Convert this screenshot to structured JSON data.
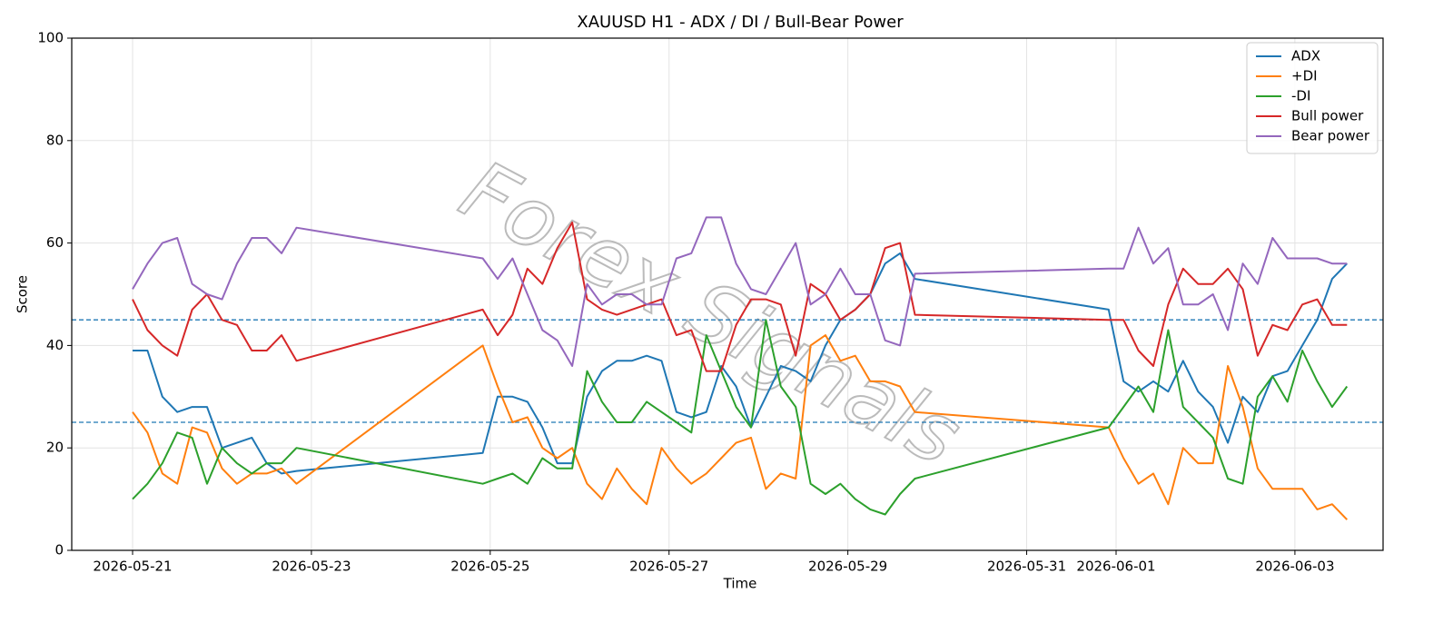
{
  "chart_data": {
    "type": "line",
    "title": "XAUUSD H1 - ADX / DI / Bull-Bear Power",
    "xlabel": "Time",
    "ylabel": "Score",
    "watermark": "Forex Signals",
    "x": [
      "2026-05-21 00:00",
      "2026-05-21 04:00",
      "2026-05-21 08:00",
      "2026-05-21 12:00",
      "2026-05-21 16:00",
      "2026-05-21 20:00",
      "2026-05-22 00:00",
      "2026-05-22 04:00",
      "2026-05-22 08:00",
      "2026-05-22 12:00",
      "2026-05-22 16:00",
      "2026-05-22 20:00",
      "2026-05-24 22:00",
      "2026-05-25 02:00",
      "2026-05-25 06:00",
      "2026-05-25 10:00",
      "2026-05-25 14:00",
      "2026-05-25 18:00",
      "2026-05-25 22:00",
      "2026-05-26 02:00",
      "2026-05-26 06:00",
      "2026-05-26 10:00",
      "2026-05-26 14:00",
      "2026-05-26 18:00",
      "2026-05-26 22:00",
      "2026-05-27 02:00",
      "2026-05-27 06:00",
      "2026-05-27 10:00",
      "2026-05-27 14:00",
      "2026-05-27 18:00",
      "2026-05-27 22:00",
      "2026-05-28 02:00",
      "2026-05-28 06:00",
      "2026-05-28 10:00",
      "2026-05-28 14:00",
      "2026-05-28 18:00",
      "2026-05-28 22:00",
      "2026-05-29 02:00",
      "2026-05-29 06:00",
      "2026-05-29 10:00",
      "2026-05-29 14:00",
      "2026-05-29 18:00",
      "2026-05-31 22:00",
      "2026-06-01 02:00",
      "2026-06-01 06:00",
      "2026-06-01 10:00",
      "2026-06-01 14:00",
      "2026-06-01 18:00",
      "2026-06-01 22:00",
      "2026-06-02 02:00",
      "2026-06-02 06:00",
      "2026-06-02 10:00",
      "2026-06-02 14:00",
      "2026-06-02 18:00",
      "2026-06-02 22:00",
      "2026-06-03 02:00",
      "2026-06-03 06:00",
      "2026-06-03 10:00",
      "2026-06-03 14:00"
    ],
    "series": [
      {
        "name": "ADX",
        "color": "#1f77b4",
        "values": [
          39,
          39,
          30,
          27,
          28,
          28,
          20,
          21,
          22,
          17,
          15,
          15.5,
          19,
          30,
          30,
          29,
          24,
          17,
          17,
          30,
          35,
          37,
          37,
          38,
          37,
          27,
          26,
          27,
          36,
          32,
          24,
          30,
          36,
          35,
          33,
          40,
          45,
          47,
          50,
          56,
          58,
          53,
          47,
          33,
          31,
          33,
          31,
          37,
          31,
          28,
          21,
          30,
          27,
          34,
          35,
          40,
          45,
          53,
          56
        ]
      },
      {
        "name": "+DI",
        "color": "#ff7f0e",
        "values": [
          27,
          23,
          15,
          13,
          24,
          23,
          16,
          13,
          15,
          15,
          16,
          13,
          40,
          32,
          25,
          26,
          20,
          18,
          20,
          13,
          10,
          16,
          12,
          9,
          20,
          16,
          13,
          15,
          18,
          21,
          22,
          12,
          15,
          14,
          40,
          42,
          37,
          38,
          33,
          33,
          32,
          27,
          24,
          18,
          13,
          15,
          9,
          20,
          17,
          17,
          36,
          28,
          16,
          12,
          12,
          12,
          8,
          9,
          6
        ]
      },
      {
        "name": "-DI",
        "color": "#2ca02c",
        "values": [
          10,
          13,
          17,
          23,
          22,
          13,
          20,
          17,
          15,
          17,
          17,
          20,
          13,
          14,
          15,
          13,
          18,
          16,
          16,
          35,
          29,
          25,
          25,
          29,
          27,
          25,
          23,
          42,
          35,
          28,
          24,
          45,
          32,
          28,
          13,
          11,
          13,
          10,
          8,
          7,
          11,
          14,
          24,
          28,
          32,
          27,
          43,
          28,
          25,
          22,
          14,
          13,
          30,
          34,
          29,
          39,
          33,
          28,
          32
        ]
      },
      {
        "name": "Bull power",
        "color": "#d62728",
        "values": [
          49,
          43,
          40,
          38,
          47,
          50,
          45,
          44,
          39,
          39,
          42,
          37,
          47,
          42,
          46,
          55,
          52,
          59,
          64,
          49,
          47,
          46,
          47,
          48,
          49,
          42,
          43,
          35,
          35,
          44,
          49,
          49,
          48,
          38,
          52,
          50,
          45,
          47,
          50,
          59,
          60,
          46,
          45,
          45,
          39,
          36,
          48,
          55,
          52,
          52,
          55,
          51,
          38,
          44,
          43,
          48,
          49,
          44,
          44
        ]
      },
      {
        "name": "Bear power",
        "color": "#9467bd",
        "values": [
          51,
          56,
          60,
          61,
          52,
          50,
          49,
          56,
          61,
          61,
          58,
          63,
          57,
          53,
          57,
          50,
          43,
          41,
          36,
          52,
          48,
          50,
          50,
          48,
          48,
          57,
          58,
          65,
          65,
          56,
          51,
          50,
          55,
          60,
          48,
          50,
          55,
          50,
          50,
          41,
          40,
          54,
          55,
          55,
          63,
          56,
          59,
          48,
          48,
          50,
          43,
          56,
          52,
          61,
          57,
          57,
          57,
          56,
          56
        ]
      }
    ],
    "hlines": [
      25,
      45
    ],
    "hline_color": "#1f77b4",
    "xlim": [
      "2026-05-20 07:40",
      "2026-06-03 23:40"
    ],
    "xticks": [
      "2026-05-21",
      "2026-05-23",
      "2026-05-25",
      "2026-05-27",
      "2026-05-29",
      "2026-05-31",
      "2026-06-01",
      "2026-06-03"
    ],
    "ylim": [
      0,
      100
    ],
    "yticks": [
      0,
      20,
      40,
      60,
      80,
      100
    ],
    "grid": true,
    "legend": "upper right"
  }
}
